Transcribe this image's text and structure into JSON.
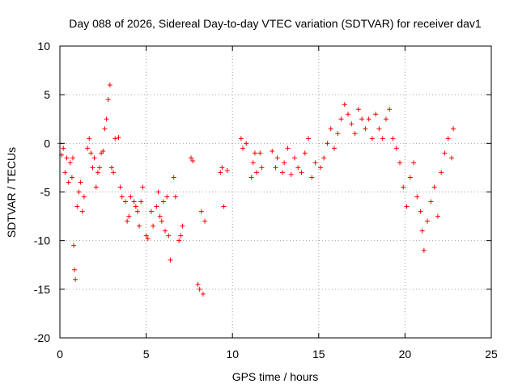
{
  "chart_data": {
    "type": "scatter",
    "title": "Day 088 of 2026, Sidereal Day-to-day VTEC variation (SDTVAR) for receiver dav1",
    "xlabel": "GPS time / hours",
    "ylabel": "SDTVAR / TECUs",
    "xlim": [
      0,
      25
    ],
    "ylim": [
      -20,
      10
    ],
    "xticks": [
      "0",
      "5",
      "10",
      "15",
      "20",
      "25"
    ],
    "yticks": [
      "-20",
      "-15",
      "-10",
      "-5",
      "0",
      "5",
      "10"
    ],
    "xtick_values": [
      0,
      5,
      10,
      15,
      20,
      25
    ],
    "ytick_values": [
      -20,
      -15,
      -10,
      -5,
      0,
      5,
      10
    ],
    "grid": true,
    "marker": "plus",
    "color": "#ff0000",
    "series": [
      {
        "name": "dav1",
        "x": [
          0.0,
          0.1,
          0.2,
          0.3,
          0.4,
          0.5,
          0.6,
          0.7,
          0.75,
          0.8,
          0.85,
          0.9,
          1.0,
          1.1,
          1.2,
          1.3,
          1.4,
          1.6,
          1.7,
          1.8,
          1.9,
          2.0,
          2.1,
          2.2,
          2.3,
          2.4,
          2.5,
          2.6,
          2.7,
          2.8,
          2.9,
          3.0,
          3.1,
          3.2,
          3.4,
          3.5,
          3.6,
          3.8,
          3.9,
          4.0,
          4.1,
          4.3,
          4.4,
          4.5,
          4.6,
          4.7,
          4.8,
          5.0,
          5.1,
          5.3,
          5.4,
          5.6,
          5.7,
          5.8,
          5.9,
          6.0,
          6.1,
          6.2,
          6.3,
          6.4,
          6.6,
          6.7,
          6.9,
          7.0,
          7.1,
          7.6,
          7.7,
          8.0,
          8.1,
          8.2,
          8.3,
          8.4,
          9.3,
          9.4,
          9.5,
          9.7,
          10.5,
          10.6,
          10.8,
          11.1,
          11.2,
          11.3,
          11.4,
          11.6,
          11.7,
          12.3,
          12.5,
          12.6,
          12.9,
          13.0,
          13.2,
          13.4,
          13.6,
          13.8,
          14.0,
          14.2,
          14.4,
          14.6,
          14.8,
          15.1,
          15.3,
          15.5,
          15.7,
          15.9,
          16.1,
          16.3,
          16.5,
          16.7,
          16.9,
          17.1,
          17.3,
          17.5,
          17.7,
          17.9,
          18.1,
          18.3,
          18.5,
          18.7,
          18.9,
          19.1,
          19.3,
          19.5,
          19.7,
          19.9,
          20.1,
          20.3,
          20.5,
          20.7,
          20.9,
          21.0,
          21.1,
          21.3,
          21.5,
          21.7,
          21.9,
          22.1,
          22.3,
          22.5,
          22.7,
          22.8
        ],
        "y": [
          0.0,
          -1.2,
          -0.5,
          -3.0,
          -1.5,
          -4.0,
          -2.0,
          -3.5,
          -1.5,
          -10.5,
          -13.0,
          -14.0,
          -6.5,
          -5.0,
          -4.0,
          -7.0,
          -5.5,
          -0.5,
          0.5,
          -1.0,
          -2.5,
          -1.5,
          -4.5,
          -3.0,
          -2.5,
          -1.0,
          -0.8,
          1.5,
          2.5,
          4.5,
          6.0,
          -2.5,
          -3.0,
          0.5,
          0.6,
          -4.5,
          -5.5,
          -6.0,
          -8.0,
          -7.5,
          -5.5,
          -6.0,
          -6.5,
          -7.0,
          -8.5,
          -6.0,
          -4.5,
          -9.5,
          -9.8,
          -7.0,
          -8.5,
          -6.5,
          -5.0,
          -7.5,
          -8.0,
          -6.0,
          -9.0,
          -5.5,
          -9.5,
          -12.0,
          -3.5,
          -5.5,
          -10.0,
          -9.5,
          -8.5,
          -1.5,
          -1.8,
          -14.5,
          -15.0,
          -7.0,
          -15.5,
          -8.0,
          -3.0,
          -2.5,
          -6.5,
          -2.8,
          0.5,
          -0.5,
          0.0,
          -3.5,
          -2.0,
          -1.0,
          -3.0,
          -1.0,
          -2.5,
          -0.8,
          -2.5,
          -1.5,
          -3.0,
          -2.0,
          -0.5,
          -3.2,
          -1.5,
          -2.5,
          -3.0,
          -1.0,
          0.5,
          -3.5,
          -2.0,
          -2.5,
          -1.5,
          0.0,
          1.5,
          -0.5,
          1.0,
          2.5,
          4.0,
          3.0,
          2.0,
          1.0,
          3.5,
          2.5,
          1.5,
          2.5,
          0.5,
          3.0,
          1.5,
          0.5,
          2.5,
          3.5,
          0.5,
          -0.5,
          -2.0,
          -4.5,
          -6.5,
          -3.5,
          -2.0,
          -5.5,
          -7.0,
          -9.0,
          -11.0,
          -8.0,
          -6.0,
          -4.5,
          -7.5,
          -3.0,
          -1.0,
          0.5,
          -1.5,
          1.5
        ]
      }
    ]
  }
}
